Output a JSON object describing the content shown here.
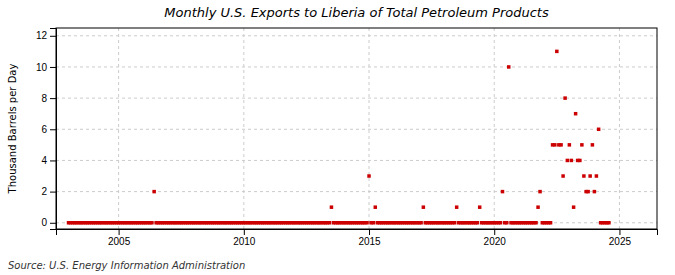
{
  "chart_data": {
    "type": "scatter",
    "title": "Monthly U.S. Exports to Liberia of Total Petroleum Products",
    "ylabel": "Thousand Barrels per Day",
    "annotations": [
      "Source: U.S. Energy Information Administration"
    ],
    "color": "#cc0000",
    "marker": "square",
    "grid": true,
    "xlim": [
      2002.5,
      2026.5
    ],
    "ylim": [
      -0.4,
      12.5
    ],
    "xticks": [
      2005,
      2010,
      2015,
      2020,
      2025
    ],
    "yticks": [
      0,
      2,
      4,
      6,
      8,
      10,
      12
    ],
    "x": [
      2003.0,
      2003.08,
      2003.17,
      2003.25,
      2003.33,
      2003.42,
      2003.5,
      2003.58,
      2003.67,
      2003.75,
      2003.83,
      2003.92,
      2004.0,
      2004.08,
      2004.17,
      2004.25,
      2004.33,
      2004.42,
      2004.5,
      2004.58,
      2004.67,
      2004.75,
      2004.83,
      2004.92,
      2005.0,
      2005.08,
      2005.17,
      2005.25,
      2005.33,
      2005.42,
      2005.5,
      2005.58,
      2005.67,
      2005.75,
      2005.83,
      2005.92,
      2006.0,
      2006.08,
      2006.17,
      2006.25,
      2006.33,
      2006.42,
      2006.5,
      2006.58,
      2006.67,
      2006.75,
      2006.83,
      2006.92,
      2007.0,
      2007.08,
      2007.17,
      2007.25,
      2007.33,
      2007.42,
      2007.5,
      2007.58,
      2007.67,
      2007.75,
      2007.83,
      2007.92,
      2008.0,
      2008.08,
      2008.17,
      2008.25,
      2008.33,
      2008.42,
      2008.5,
      2008.58,
      2008.67,
      2008.75,
      2008.83,
      2008.92,
      2009.0,
      2009.08,
      2009.17,
      2009.25,
      2009.33,
      2009.42,
      2009.5,
      2009.58,
      2009.67,
      2009.75,
      2009.83,
      2009.92,
      2010.0,
      2010.08,
      2010.17,
      2010.25,
      2010.33,
      2010.42,
      2010.5,
      2010.58,
      2010.67,
      2010.75,
      2010.83,
      2010.92,
      2011.0,
      2011.08,
      2011.17,
      2011.25,
      2011.33,
      2011.42,
      2011.5,
      2011.58,
      2011.67,
      2011.75,
      2011.83,
      2011.92,
      2012.0,
      2012.08,
      2012.17,
      2012.25,
      2012.33,
      2012.42,
      2012.5,
      2012.58,
      2012.67,
      2012.75,
      2012.83,
      2012.92,
      2013.0,
      2013.08,
      2013.17,
      2013.25,
      2013.33,
      2013.42,
      2013.5,
      2013.58,
      2013.67,
      2013.75,
      2013.83,
      2013.92,
      2014.0,
      2014.08,
      2014.17,
      2014.25,
      2014.33,
      2014.42,
      2014.5,
      2014.58,
      2014.67,
      2014.75,
      2014.83,
      2014.92,
      2015.0,
      2015.08,
      2015.17,
      2015.25,
      2015.33,
      2015.42,
      2015.5,
      2015.58,
      2015.67,
      2015.75,
      2015.83,
      2015.92,
      2016.0,
      2016.08,
      2016.17,
      2016.25,
      2016.33,
      2016.42,
      2016.5,
      2016.58,
      2016.67,
      2016.75,
      2016.83,
      2016.92,
      2017.0,
      2017.08,
      2017.17,
      2017.25,
      2017.33,
      2017.42,
      2017.5,
      2017.58,
      2017.67,
      2017.75,
      2017.83,
      2017.92,
      2018.0,
      2018.08,
      2018.17,
      2018.25,
      2018.33,
      2018.42,
      2018.5,
      2018.58,
      2018.67,
      2018.75,
      2018.83,
      2018.92,
      2019.0,
      2019.08,
      2019.17,
      2019.25,
      2019.33,
      2019.42,
      2019.5,
      2019.58,
      2019.67,
      2019.75,
      2019.83,
      2019.92,
      2020.0,
      2020.08,
      2020.17,
      2020.25,
      2020.33,
      2020.42,
      2020.5,
      2020.58,
      2020.67,
      2020.75,
      2020.83,
      2020.92,
      2021.0,
      2021.08,
      2021.17,
      2021.25,
      2021.33,
      2021.42,
      2021.5,
      2021.58,
      2021.67,
      2021.75,
      2021.83,
      2021.92,
      2022.0,
      2022.08,
      2022.17,
      2022.25,
      2022.33,
      2022.42,
      2022.5,
      2022.58,
      2022.67,
      2022.75,
      2022.83,
      2022.92,
      2023.0,
      2023.08,
      2023.17,
      2023.25,
      2023.33,
      2023.42,
      2023.5,
      2023.58,
      2023.67,
      2023.75,
      2023.83,
      2023.92,
      2024.0,
      2024.08,
      2024.17,
      2024.25,
      2024.33,
      2024.42,
      2024.5,
      2024.58
    ],
    "values": [
      0,
      0,
      0,
      0,
      0,
      0,
      0,
      0,
      0,
      0,
      0,
      0,
      0,
      0,
      0,
      0,
      0,
      0,
      0,
      0,
      0,
      0,
      0,
      0,
      0,
      0,
      0,
      0,
      0,
      0,
      0,
      0,
      0,
      0,
      0,
      0,
      0,
      0,
      0,
      0,
      0,
      2,
      0,
      0,
      0,
      0,
      0,
      0,
      0,
      0,
      0,
      0,
      0,
      0,
      0,
      0,
      0,
      0,
      0,
      0,
      0,
      0,
      0,
      0,
      0,
      0,
      0,
      0,
      0,
      0,
      0,
      0,
      0,
      0,
      0,
      0,
      0,
      0,
      0,
      0,
      0,
      0,
      0,
      0,
      0,
      0,
      0,
      0,
      0,
      0,
      0,
      0,
      0,
      0,
      0,
      0,
      0,
      0,
      0,
      0,
      0,
      0,
      0,
      0,
      0,
      0,
      0,
      0,
      0,
      0,
      0,
      0,
      0,
      0,
      0,
      0,
      0,
      0,
      0,
      0,
      0,
      0,
      0,
      0,
      0,
      0,
      1,
      0,
      0,
      0,
      0,
      0,
      0,
      0,
      0,
      0,
      0,
      0,
      0,
      0,
      0,
      0,
      0,
      0,
      3,
      0,
      0,
      1,
      0,
      0,
      0,
      0,
      0,
      0,
      0,
      0,
      0,
      0,
      0,
      0,
      0,
      0,
      0,
      0,
      0,
      0,
      0,
      0,
      0,
      0,
      1,
      0,
      0,
      0,
      0,
      0,
      0,
      0,
      0,
      0,
      0,
      0,
      0,
      0,
      0,
      0,
      1,
      0,
      0,
      0,
      0,
      0,
      0,
      0,
      0,
      0,
      0,
      1,
      0,
      0,
      0,
      0,
      0,
      0,
      0,
      0,
      0,
      0,
      2,
      0,
      0,
      10,
      0,
      0,
      0,
      0,
      0,
      0,
      0,
      0,
      0,
      0,
      0,
      0,
      0,
      1,
      2,
      0,
      0,
      0,
      0,
      0,
      5,
      5,
      11,
      5,
      5,
      3,
      8,
      4,
      5,
      4,
      1,
      7,
      4,
      4,
      5,
      3,
      2,
      2,
      3,
      5,
      2,
      3,
      6,
      0,
      0,
      0,
      0,
      0
    ]
  }
}
